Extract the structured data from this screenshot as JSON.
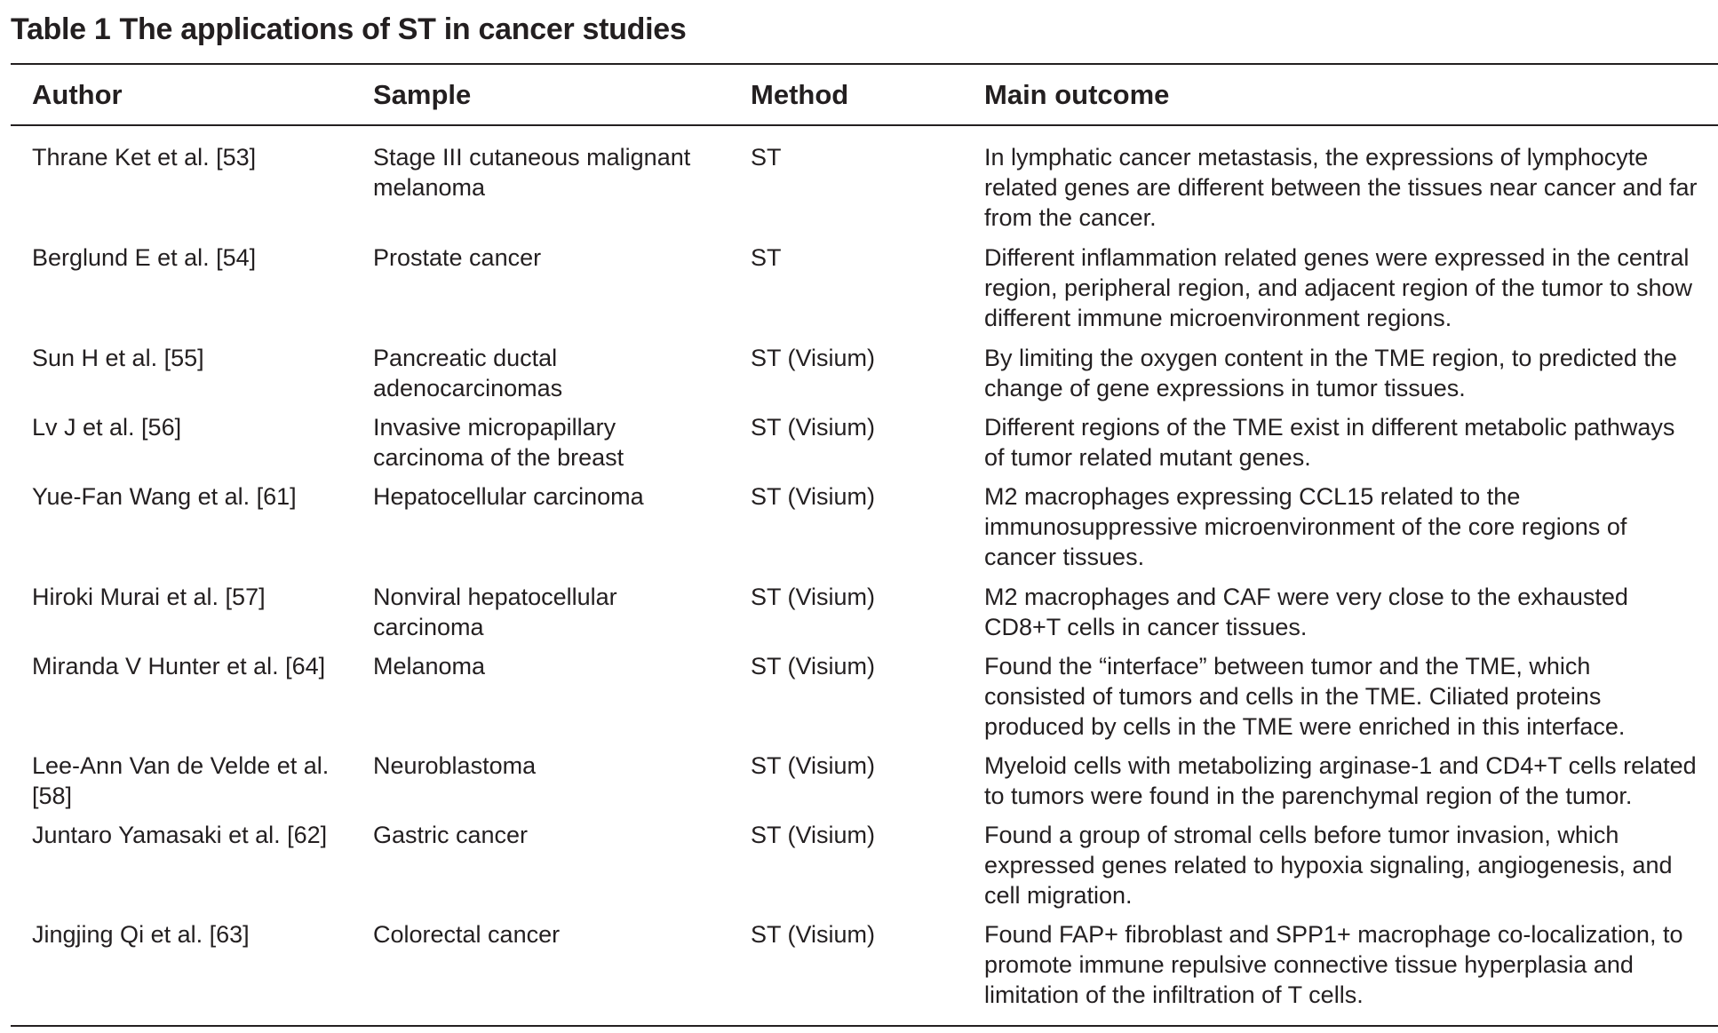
{
  "caption": {
    "label": "Table 1",
    "title": "The applications of ST in cancer studies"
  },
  "headers": {
    "author": "Author",
    "sample": "Sample",
    "method": "Method",
    "outcome": "Main outcome"
  },
  "rows": [
    {
      "author": "Thrane Ket et al. [53]",
      "sample": "Stage III cutaneous malignant\nmelanoma",
      "method": "ST",
      "outcome": "In lymphatic cancer metastasis, the expressions of lymphocyte\nrelated genes are different between the tissues near cancer and far\nfrom the cancer."
    },
    {
      "author": "Berglund E et al. [54]",
      "sample": "Prostate cancer",
      "method": "ST",
      "outcome": "Different inflammation related genes were expressed in the central\nregion, peripheral region, and adjacent region of the tumor to show\ndifferent immune microenvironment regions."
    },
    {
      "author": "Sun H et al. [55]",
      "sample": "Pancreatic ductal\nadenocarcinomas",
      "method": "ST (Visium)",
      "outcome": "By limiting the oxygen content in the TME region, to predicted the\nchange of gene expressions in tumor tissues."
    },
    {
      "author": "Lv J et al. [56]",
      "sample": "Invasive micropapillary\ncarcinoma of the breast",
      "method": "ST (Visium)",
      "outcome": "Different regions of the TME exist in different metabolic pathways\nof tumor related mutant genes."
    },
    {
      "author": "Yue-Fan Wang et al. [61]",
      "sample": "Hepatocellular carcinoma",
      "method": "ST (Visium)",
      "outcome": "M2 macrophages expressing CCL15 related to the\nimmunosuppressive microenvironment of the core regions of\ncancer tissues."
    },
    {
      "author": "Hiroki Murai et al. [57]",
      "sample": "Nonviral hepatocellular\ncarcinoma",
      "method": "ST (Visium)",
      "outcome": "M2 macrophages and CAF were very close to the exhausted\nCD8+T cells in cancer tissues."
    },
    {
      "author": "Miranda V Hunter et al. [64]",
      "sample": "Melanoma",
      "method": "ST (Visium)",
      "outcome": "Found the “interface” between tumor and the TME, which\nconsisted of tumors and cells in the TME. Ciliated proteins\nproduced by cells in the TME were enriched in this interface."
    },
    {
      "author": "Lee-Ann Van de Velde et al.\n[58]",
      "sample": "Neuroblastoma",
      "method": "ST (Visium)",
      "outcome": "Myeloid cells with metabolizing arginase-1 and CD4+T cells related\nto tumors were found in the parenchymal region of the tumor."
    },
    {
      "author": "Juntaro Yamasaki et al. [62]",
      "sample": "Gastric cancer",
      "method": "ST (Visium)",
      "outcome": "Found a group of stromal cells before tumor invasion, which\nexpressed genes related to hypoxia signaling, angiogenesis, and\ncell migration."
    },
    {
      "author": "Jingjing Qi et al. [63]",
      "sample": "Colorectal cancer",
      "method": "ST (Visium)",
      "outcome": "Found FAP+ fibroblast and SPP1+ macrophage co-localization, to\npromote immune repulsive connective tissue hyperplasia and\nlimitation of the infiltration of T cells."
    }
  ]
}
